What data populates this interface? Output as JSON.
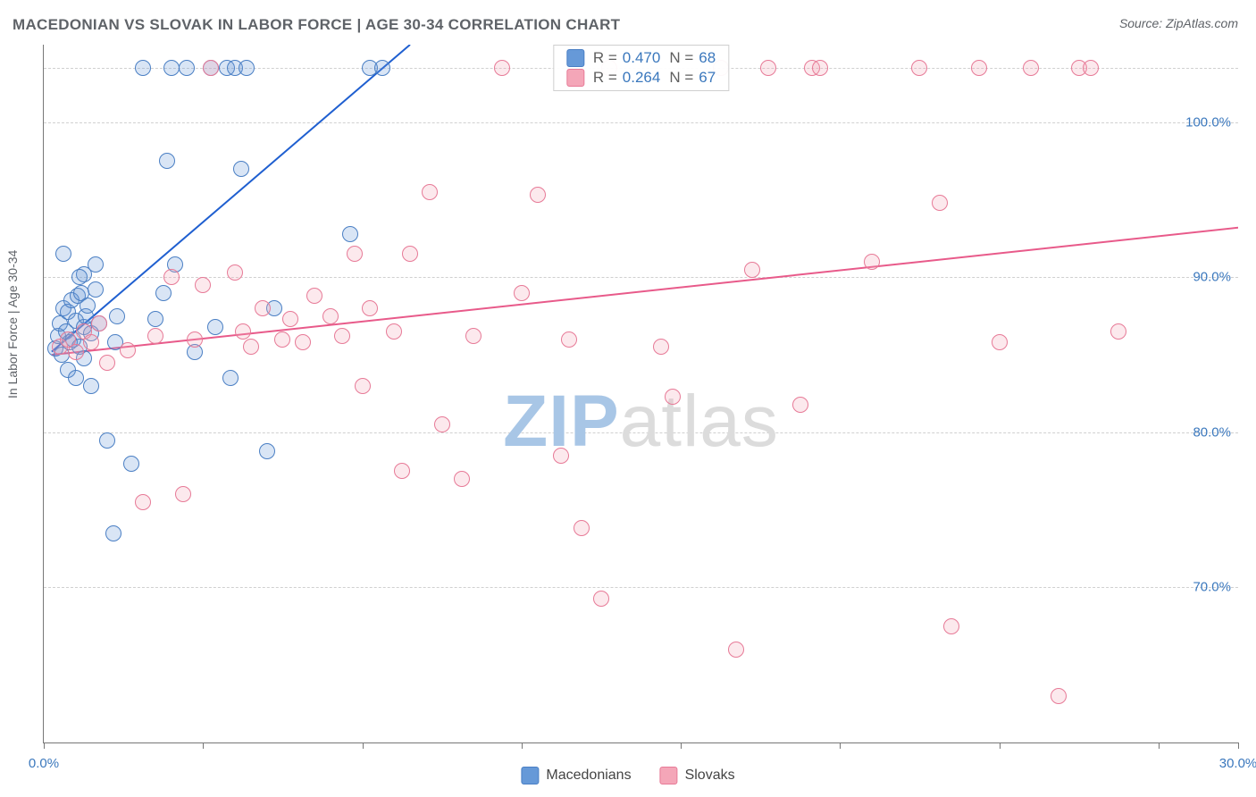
{
  "title": "MACEDONIAN VS SLOVAK IN LABOR FORCE | AGE 30-34 CORRELATION CHART",
  "source": "Source: ZipAtlas.com",
  "y_axis_label": "In Labor Force | Age 30-34",
  "watermark": {
    "bold": "ZIP",
    "rest": "atlas",
    "bold_color": "#a8c6e6",
    "rest_color": "#dcdcdc"
  },
  "chart": {
    "type": "scatter",
    "xlim": [
      0,
      30
    ],
    "ylim": [
      60,
      105
    ],
    "x_ticks": [
      0,
      4,
      8,
      12,
      16,
      20,
      24,
      28,
      30
    ],
    "x_tick_labels": {
      "0": "0.0%",
      "30": "30.0%"
    },
    "y_gridlines": [
      70,
      80,
      90,
      100,
      103.5
    ],
    "y_tick_labels": {
      "70": "70.0%",
      "80": "80.0%",
      "90": "90.0%",
      "100": "100.0%"
    },
    "background_color": "#ffffff",
    "grid_color": "#d0d0d0",
    "marker_radius": 9,
    "marker_stroke_width": 1.2,
    "marker_fill_opacity": 0.25
  },
  "series": [
    {
      "name": "Macedonians",
      "color": "#6699d8",
      "stroke": "#4a7fc4",
      "stats": {
        "R": "0.470",
        "N": "68"
      },
      "trend": {
        "x1": 0.2,
        "y1": 85.2,
        "x2": 9.2,
        "y2": 105,
        "color": "#1f5fd0",
        "width": 2
      },
      "points": [
        [
          0.3,
          85.4
        ],
        [
          0.35,
          86.2
        ],
        [
          0.4,
          87.0
        ],
        [
          0.45,
          85.0
        ],
        [
          0.5,
          88.0
        ],
        [
          0.55,
          86.5
        ],
        [
          0.6,
          87.8
        ],
        [
          0.65,
          85.8
        ],
        [
          0.7,
          88.5
        ],
        [
          0.75,
          86.0
        ],
        [
          0.8,
          87.2
        ],
        [
          0.85,
          88.8
        ],
        [
          0.9,
          85.5
        ],
        [
          0.95,
          89.0
        ],
        [
          1.0,
          86.8
        ],
        [
          1.05,
          87.5
        ],
        [
          1.1,
          88.2
        ],
        [
          1.2,
          86.4
        ],
        [
          1.3,
          89.2
        ],
        [
          1.4,
          87.0
        ],
        [
          0.6,
          84.0
        ],
        [
          0.8,
          83.5
        ],
        [
          1.0,
          84.8
        ],
        [
          1.2,
          83.0
        ],
        [
          1.0,
          90.2
        ],
        [
          1.3,
          90.8
        ],
        [
          0.5,
          91.5
        ],
        [
          0.9,
          90.0
        ],
        [
          1.6,
          79.5
        ],
        [
          1.75,
          73.5
        ],
        [
          1.8,
          85.8
        ],
        [
          1.85,
          87.5
        ],
        [
          2.2,
          78.0
        ],
        [
          2.5,
          103.5
        ],
        [
          2.8,
          87.3
        ],
        [
          3.0,
          89.0
        ],
        [
          3.1,
          97.5
        ],
        [
          3.2,
          103.5
        ],
        [
          3.6,
          103.5
        ],
        [
          3.3,
          90.8
        ],
        [
          3.8,
          85.2
        ],
        [
          4.2,
          103.5
        ],
        [
          4.3,
          86.8
        ],
        [
          4.6,
          103.5
        ],
        [
          4.7,
          83.5
        ],
        [
          4.8,
          103.5
        ],
        [
          4.95,
          97.0
        ],
        [
          5.1,
          103.5
        ],
        [
          5.6,
          78.8
        ],
        [
          5.8,
          88.0
        ],
        [
          7.7,
          92.8
        ],
        [
          8.2,
          103.5
        ],
        [
          8.5,
          103.5
        ]
      ]
    },
    {
      "name": "Slovaks",
      "color": "#f4a6b8",
      "stroke": "#e77a97",
      "stats": {
        "R": "0.264",
        "N": "67"
      },
      "trend": {
        "x1": 0.2,
        "y1": 85.0,
        "x2": 30,
        "y2": 93.2,
        "color": "#e85a8a",
        "width": 2
      },
      "points": [
        [
          0.4,
          85.5
        ],
        [
          0.6,
          86.0
        ],
        [
          0.8,
          85.2
        ],
        [
          1.0,
          86.5
        ],
        [
          1.2,
          85.8
        ],
        [
          1.4,
          87.0
        ],
        [
          1.6,
          84.5
        ],
        [
          2.1,
          85.3
        ],
        [
          2.5,
          75.5
        ],
        [
          2.8,
          86.2
        ],
        [
          3.2,
          90.0
        ],
        [
          3.5,
          76.0
        ],
        [
          3.8,
          86.0
        ],
        [
          4.0,
          89.5
        ],
        [
          4.2,
          103.5
        ],
        [
          4.8,
          90.3
        ],
        [
          5.0,
          86.5
        ],
        [
          5.2,
          85.5
        ],
        [
          5.5,
          88.0
        ],
        [
          6.0,
          86.0
        ],
        [
          6.2,
          87.3
        ],
        [
          6.5,
          85.8
        ],
        [
          6.8,
          88.8
        ],
        [
          7.2,
          87.5
        ],
        [
          7.5,
          86.2
        ],
        [
          7.8,
          91.5
        ],
        [
          8.0,
          83.0
        ],
        [
          8.2,
          88.0
        ],
        [
          8.8,
          86.5
        ],
        [
          9.0,
          77.5
        ],
        [
          9.2,
          91.5
        ],
        [
          9.7,
          95.5
        ],
        [
          10.0,
          80.5
        ],
        [
          10.5,
          77.0
        ],
        [
          10.8,
          86.2
        ],
        [
          11.5,
          103.5
        ],
        [
          12.0,
          89.0
        ],
        [
          12.4,
          95.3
        ],
        [
          13.0,
          78.5
        ],
        [
          13.2,
          86.0
        ],
        [
          13.5,
          73.8
        ],
        [
          14.0,
          69.3
        ],
        [
          14.2,
          103.5
        ],
        [
          15.5,
          85.5
        ],
        [
          15.8,
          82.3
        ],
        [
          17.0,
          103.5
        ],
        [
          17.4,
          66.0
        ],
        [
          17.8,
          90.5
        ],
        [
          18.2,
          103.5
        ],
        [
          19.0,
          81.8
        ],
        [
          19.3,
          103.5
        ],
        [
          19.5,
          103.5
        ],
        [
          20.8,
          91.0
        ],
        [
          22.0,
          103.5
        ],
        [
          22.5,
          94.8
        ],
        [
          22.8,
          67.5
        ],
        [
          23.5,
          103.5
        ],
        [
          24.0,
          85.8
        ],
        [
          24.8,
          103.5
        ],
        [
          25.5,
          63.0
        ],
        [
          26.0,
          103.5
        ],
        [
          26.3,
          103.5
        ],
        [
          27.0,
          86.5
        ]
      ]
    }
  ],
  "legend": [
    {
      "label": "Macedonians",
      "color": "#6699d8",
      "stroke": "#4a7fc4"
    },
    {
      "label": "Slovaks",
      "color": "#f4a6b8",
      "stroke": "#e77a97"
    }
  ],
  "stats_labels": {
    "R": "R =",
    "N": "N ="
  }
}
